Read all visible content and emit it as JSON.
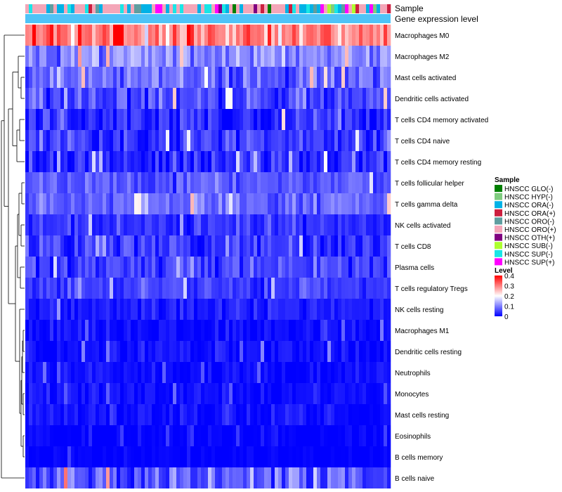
{
  "chart_data": {
    "type": "heatmap",
    "title": "",
    "annotation_rows": [
      "Sample",
      "Gene expression level"
    ],
    "rows": [
      {
        "label": "Macrophages M0",
        "mean": 0.3,
        "spread": 0.1
      },
      {
        "label": "Macrophages M2",
        "mean": 0.11,
        "spread": 0.06
      },
      {
        "label": "Mast cells activated",
        "mean": 0.08,
        "spread": 0.06
      },
      {
        "label": "Dendritic cells activated",
        "mean": 0.06,
        "spread": 0.06
      },
      {
        "label": "T cells CD4 memory activated",
        "mean": 0.04,
        "spread": 0.06
      },
      {
        "label": "T cells CD4 naive",
        "mean": 0.05,
        "spread": 0.06
      },
      {
        "label": "T cells CD4 memory resting",
        "mean": 0.03,
        "spread": 0.05
      },
      {
        "label": "T cells follicular helper",
        "mean": 0.07,
        "spread": 0.04
      },
      {
        "label": "T cells gamma delta",
        "mean": 0.08,
        "spread": 0.05
      },
      {
        "label": "NK cells activated",
        "mean": 0.04,
        "spread": 0.04
      },
      {
        "label": "T cells CD8",
        "mean": 0.04,
        "spread": 0.05
      },
      {
        "label": "Plasma cells",
        "mean": 0.05,
        "spread": 0.05
      },
      {
        "label": "T cells regulatory  Tregs",
        "mean": 0.05,
        "spread": 0.04
      },
      {
        "label": "NK cells resting",
        "mean": 0.02,
        "spread": 0.03
      },
      {
        "label": "Macrophages M1",
        "mean": 0.01,
        "spread": 0.03
      },
      {
        "label": "Dendritic cells resting",
        "mean": 0.01,
        "spread": 0.03
      },
      {
        "label": "Neutrophils",
        "mean": 0.01,
        "spread": 0.025
      },
      {
        "label": "Monocytes",
        "mean": 0.01,
        "spread": 0.025
      },
      {
        "label": "Mast cells resting",
        "mean": 0.01,
        "spread": 0.03
      },
      {
        "label": "Eosinophils",
        "mean": 0.0,
        "spread": 0.02
      },
      {
        "label": "B cells memory",
        "mean": 0.0,
        "spread": 0.015
      },
      {
        "label": "B cells naive",
        "mean": 0.07,
        "spread": 0.08
      }
    ],
    "n_columns": 104,
    "sample_groups": [
      {
        "name": "HNSCC GLO(-)",
        "color": "#007f00"
      },
      {
        "name": "HNSCC HYP(-)",
        "color": "#7fcc7f"
      },
      {
        "name": "HNSCC ORA(-)",
        "color": "#00b2e6"
      },
      {
        "name": "HNSCC ORA(+)",
        "color": "#cc1f3f"
      },
      {
        "name": "HNSCC ORO(-)",
        "color": "#5f9ea0"
      },
      {
        "name": "HNSCC ORO(+)",
        "color": "#f4a6b8"
      },
      {
        "name": "HNSCC OTH(+)",
        "color": "#800080"
      },
      {
        "name": "HNSCC SUB(-)",
        "color": "#adff2f"
      },
      {
        "name": "HNSCC SUP(-)",
        "color": "#19e6e6"
      },
      {
        "name": "HNSCC SUP(+)",
        "color": "#ff00ff"
      }
    ],
    "sample_weights": [
      1,
      1,
      5,
      1,
      2,
      9,
      1,
      1,
      4,
      1
    ],
    "expression_level_color": "#4fc3f7",
    "legend": {
      "sample_title": "Sample",
      "level_title": "Level",
      "level_ticks": [
        "0.4",
        "0.3",
        "0.2",
        "0.1",
        "0"
      ],
      "level_values": [
        0.4,
        0.3,
        0.2,
        0.1,
        0.0
      ]
    },
    "color_scale": {
      "low": "#0000ff",
      "mid": "#ffffff",
      "high": "#ff0000",
      "mid_value": 0.2,
      "range": [
        0,
        0.4
      ]
    }
  }
}
